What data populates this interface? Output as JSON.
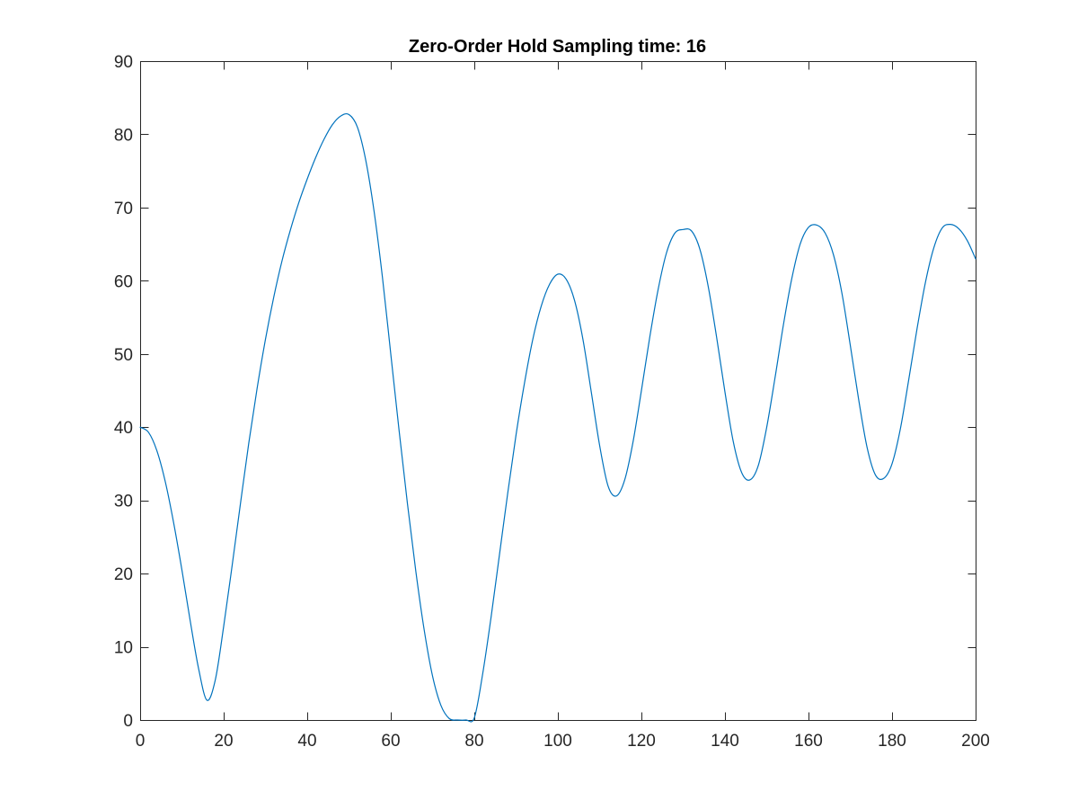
{
  "chart_data": {
    "type": "line",
    "title": "Zero-Order Hold Sampling time: 16",
    "xlabel": "",
    "ylabel": "",
    "xlim": [
      0,
      200
    ],
    "ylim": [
      0,
      90
    ],
    "xticks": [
      0,
      20,
      40,
      60,
      80,
      100,
      120,
      140,
      160,
      180,
      200
    ],
    "yticks": [
      0,
      10,
      20,
      30,
      40,
      50,
      60,
      70,
      80,
      90
    ],
    "grid": false,
    "series": [
      {
        "color": "#0072BD",
        "x": [
          0,
          2,
          4,
          6,
          8,
          10,
          12,
          14,
          16,
          18,
          20,
          22,
          24,
          26,
          28,
          30,
          32,
          34,
          36,
          38,
          40,
          42,
          44,
          46,
          48,
          50,
          52,
          54,
          56,
          58,
          60,
          62,
          64,
          66,
          68,
          70,
          72,
          74,
          76,
          78,
          80,
          82,
          84,
          86,
          88,
          90,
          92,
          94,
          96,
          98,
          100,
          102,
          104,
          106,
          108,
          110,
          112,
          114,
          116,
          118,
          120,
          122,
          124,
          126,
          128,
          130,
          132,
          134,
          136,
          138,
          140,
          142,
          144,
          146,
          148,
          150,
          152,
          154,
          156,
          158,
          160,
          162,
          164,
          166,
          168,
          170,
          172,
          174,
          176,
          178,
          180,
          182,
          184,
          186,
          188,
          190,
          192,
          194,
          196,
          198,
          200
        ],
        "y": [
          40,
          39.3,
          36.8,
          32.6,
          27.0,
          20.5,
          13.5,
          7.0,
          2.7,
          5.5,
          12.8,
          21.0,
          29.5,
          37.8,
          45.3,
          52.0,
          57.8,
          62.8,
          67.0,
          70.7,
          73.9,
          76.8,
          79.3,
          81.3,
          82.5,
          82.7,
          81.0,
          76.5,
          69.5,
          60.5,
          50.0,
          39.5,
          29.5,
          20.3,
          12.3,
          6.0,
          2.0,
          0.2,
          0.0,
          0.0,
          0.3,
          6.3,
          14.0,
          22.5,
          31.0,
          39.0,
          46.0,
          52.0,
          56.5,
          59.5,
          60.9,
          60.2,
          57.3,
          52.0,
          44.8,
          37.5,
          32.0,
          30.6,
          32.8,
          38.0,
          45.0,
          52.3,
          58.8,
          63.8,
          66.5,
          67.0,
          66.8,
          64.3,
          59.2,
          52.3,
          44.8,
          38.0,
          33.8,
          32.8,
          34.8,
          40.0,
          46.8,
          54.0,
          60.3,
          65.0,
          67.3,
          67.6,
          66.5,
          63.5,
          58.3,
          51.2,
          43.8,
          37.3,
          33.5,
          33.0,
          35.0,
          39.8,
          46.5,
          53.5,
          59.8,
          64.5,
          67.2,
          67.7,
          67.1,
          65.5,
          63.0
        ]
      }
    ]
  }
}
